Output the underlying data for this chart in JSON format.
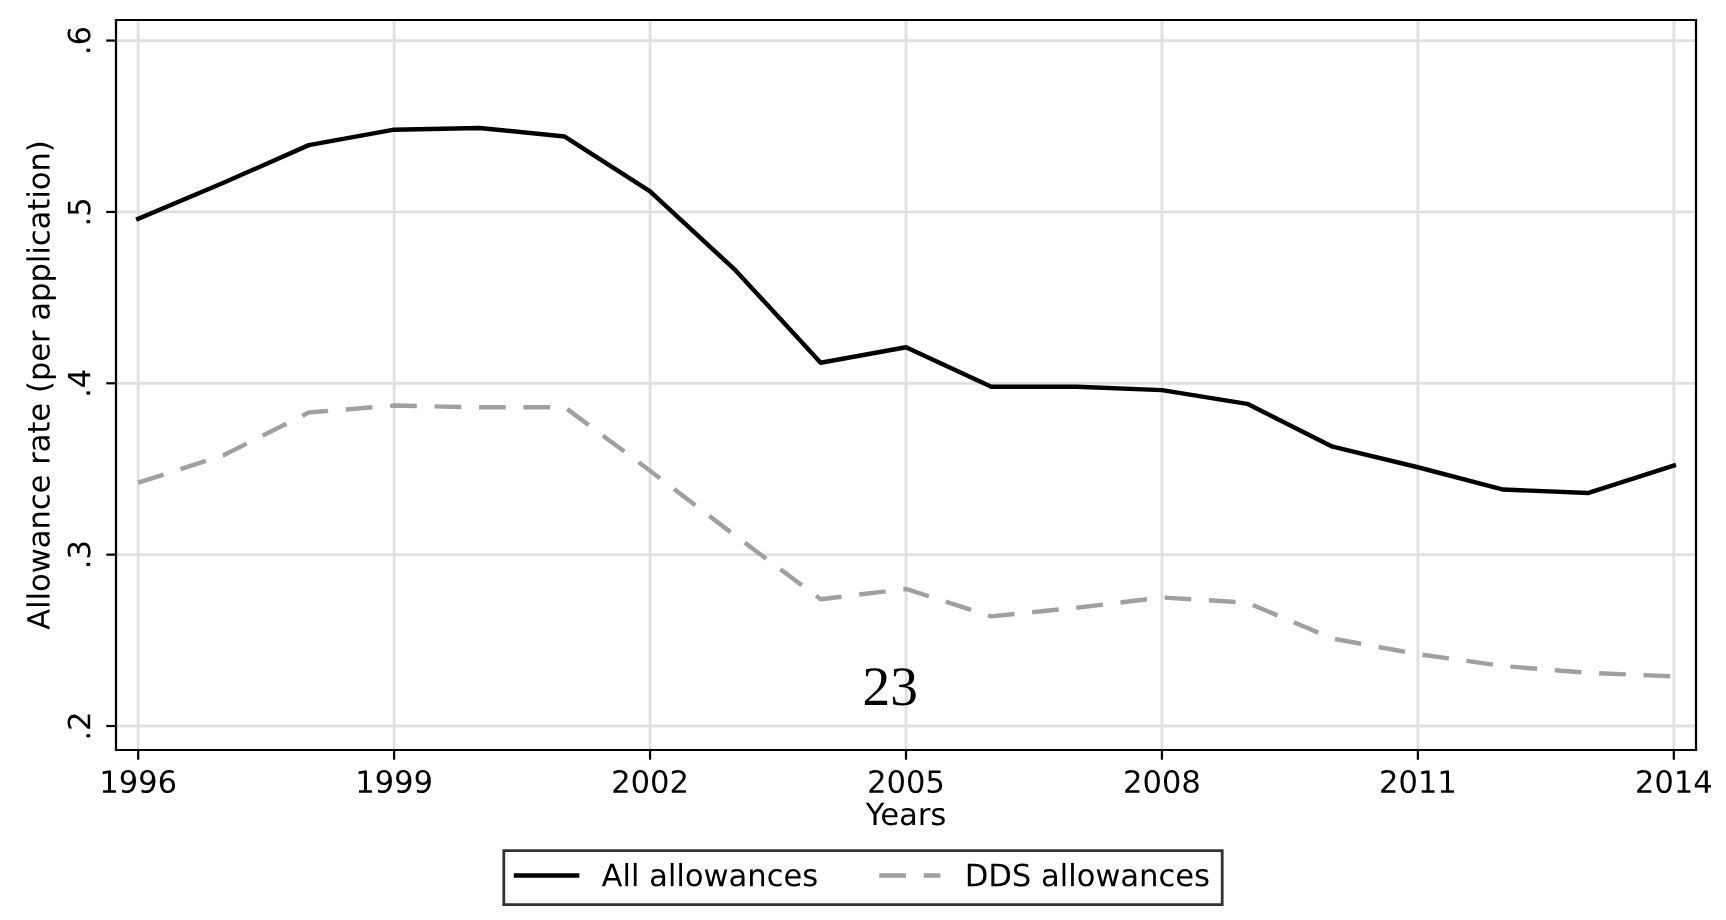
{
  "chart_data": {
    "type": "line",
    "x": [
      1996,
      1997,
      1998,
      1999,
      2000,
      2001,
      2002,
      2003,
      2004,
      2005,
      2006,
      2007,
      2008,
      2009,
      2010,
      2011,
      2012,
      2013,
      2014
    ],
    "series": [
      {
        "name": "All allowances",
        "color": "#000000",
        "line_style": "solid",
        "values": [
          0.496,
          0.517,
          0.539,
          0.548,
          0.549,
          0.544,
          0.512,
          0.466,
          0.412,
          0.421,
          0.398,
          0.398,
          0.396,
          0.388,
          0.363,
          0.351,
          0.338,
          0.336,
          0.352
        ]
      },
      {
        "name": "DDS allowances",
        "color": "#a0a0a0",
        "line_style": "dashed",
        "values": [
          0.342,
          0.358,
          0.383,
          0.387,
          0.386,
          0.386,
          0.349,
          0.311,
          0.274,
          0.28,
          0.264,
          0.269,
          0.275,
          0.272,
          0.251,
          0.242,
          0.235,
          0.231,
          0.229
        ]
      }
    ],
    "xlabel": "Years",
    "ylabel": "Allowance rate (per application)",
    "xlim": [
      1995.74,
      2014.26
    ],
    "ylim": [
      0.186,
      0.612
    ],
    "xticks": [
      1996,
      1999,
      2002,
      2005,
      2008,
      2011,
      2014
    ],
    "yticks": [
      {
        "value": 0.2,
        "label": ".2"
      },
      {
        "value": 0.3,
        "label": ".3"
      },
      {
        "value": 0.4,
        "label": ".4"
      },
      {
        "value": 0.5,
        "label": ".5"
      },
      {
        "value": 0.6,
        "label": ".6"
      }
    ],
    "grid": true,
    "legend": "bottom",
    "marker": "none",
    "annotations": [
      "23"
    ]
  }
}
